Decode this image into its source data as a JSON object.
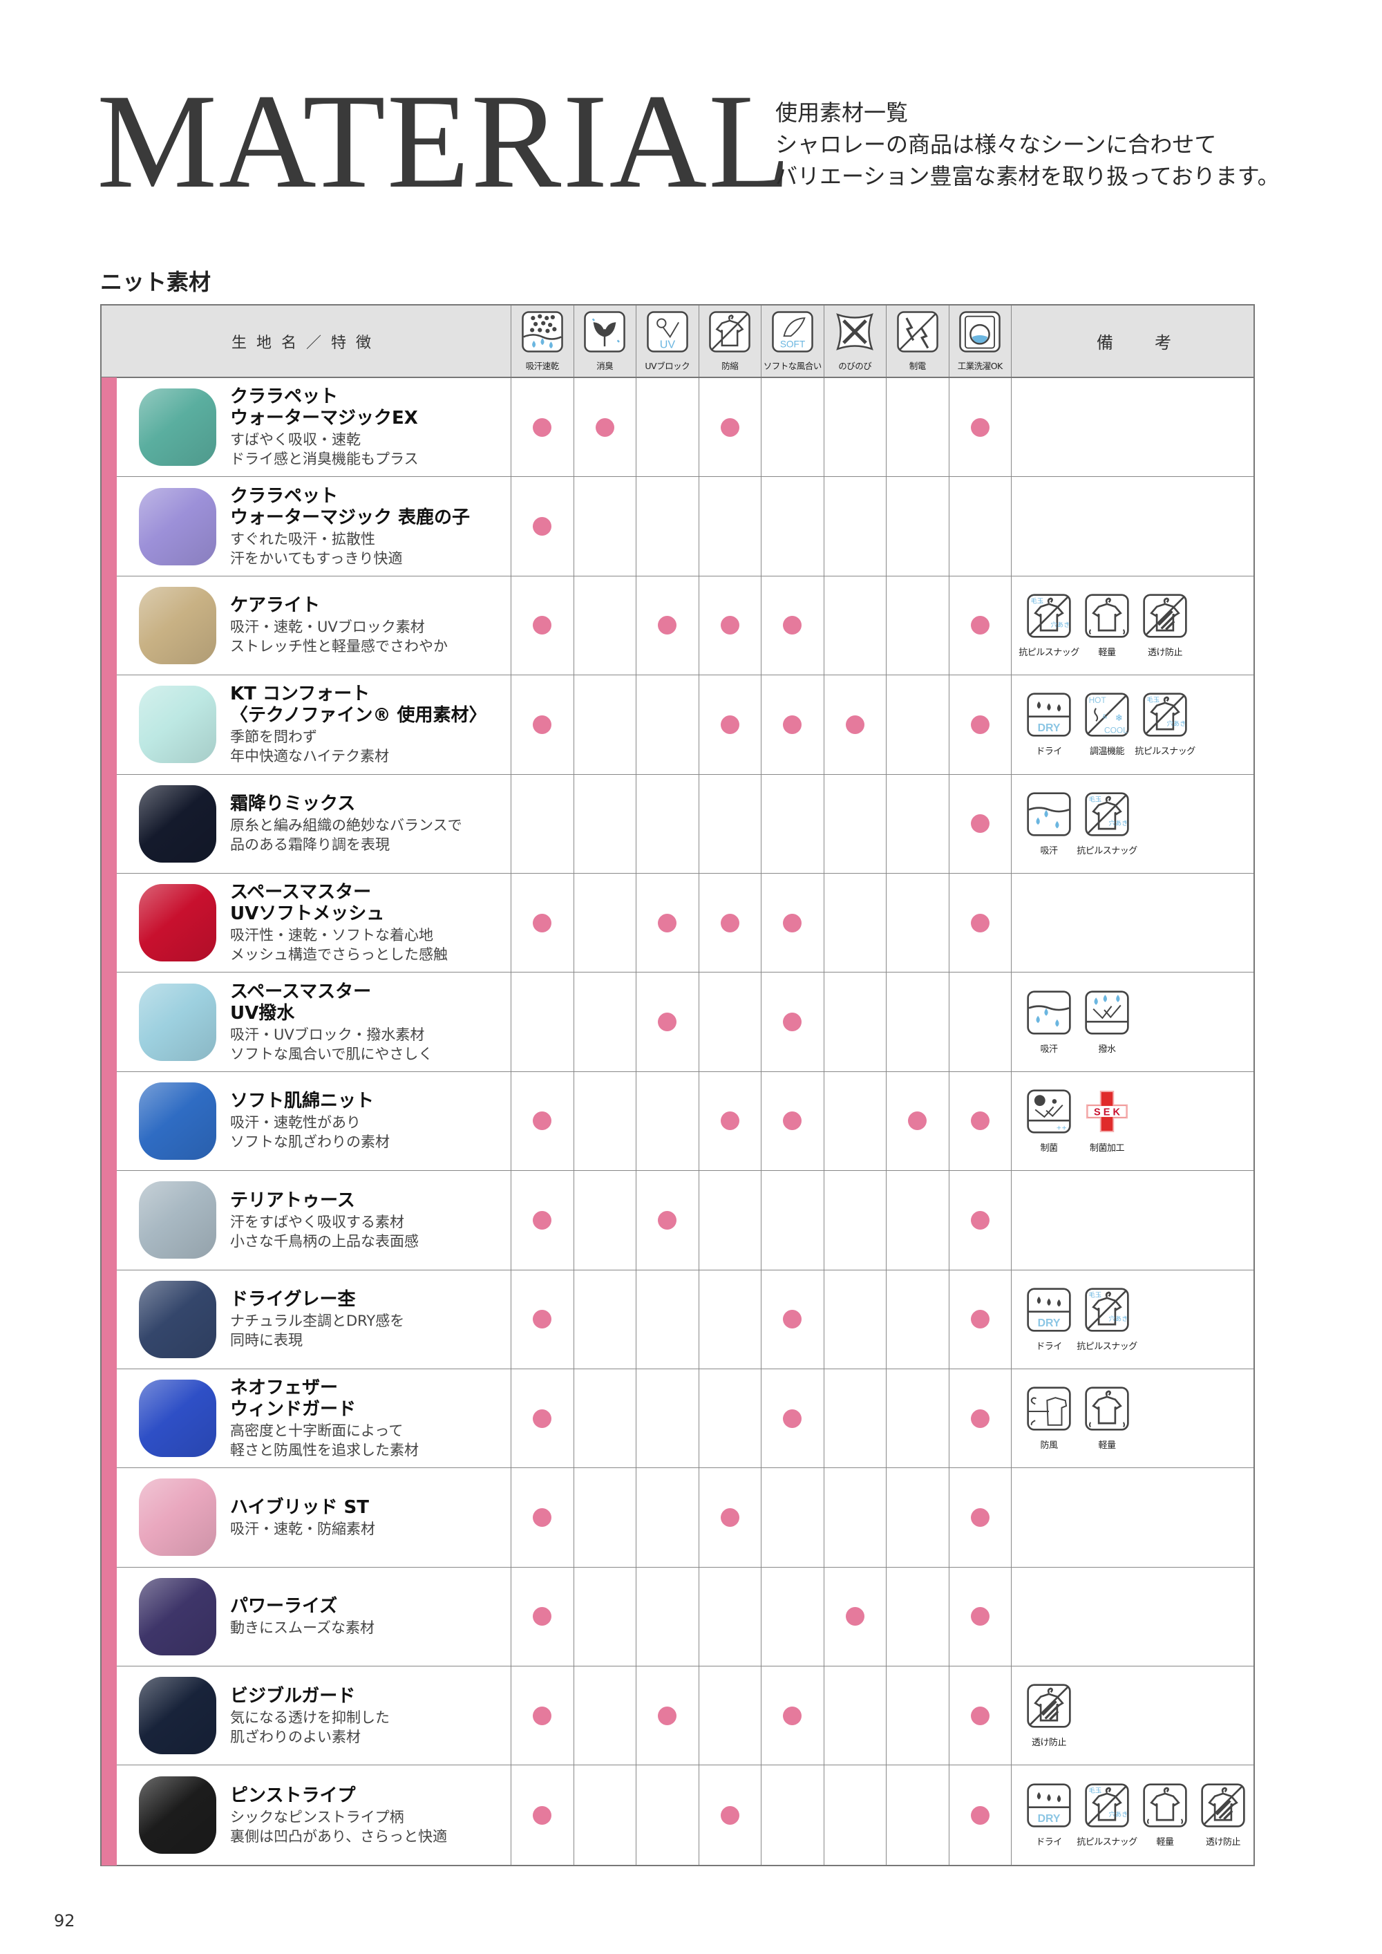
{
  "title": "MATERIAL",
  "intro": [
    "使用素材一覧",
    "シャロレーの商品は様々なシーンに合わせて",
    "バリエーション豊富な素材を取り扱っております。"
  ],
  "section_title": "ニット素材",
  "header": {
    "name": "生地名／特徴",
    "remarks": "備考",
    "features": [
      {
        "icon": "quick-dry",
        "label": "吸汗速乾"
      },
      {
        "icon": "deodorant",
        "label": "消臭"
      },
      {
        "icon": "uv-block",
        "label": "UVブロック"
      },
      {
        "icon": "shrink-proof",
        "label": "防縮"
      },
      {
        "icon": "soft",
        "label": "ソフトな風合い"
      },
      {
        "icon": "stretch",
        "label": "のびのび"
      },
      {
        "icon": "antistatic",
        "label": "制電"
      },
      {
        "icon": "industrial-wash",
        "label": "工業洗濯OK"
      }
    ]
  },
  "colors": {
    "accent": "#e57a9c",
    "border": "#777777",
    "header_bg": "#e2e2e2"
  },
  "rows": [
    {
      "name": [
        "クララペット",
        "ウォーターマジックEX"
      ],
      "desc": [
        "すばやく吸収・速乾",
        "ドライ感と消臭機能もプラス"
      ],
      "swatch": "#5aae9f",
      "features": [
        1,
        1,
        0,
        1,
        0,
        0,
        0,
        1
      ],
      "remarks": []
    },
    {
      "name": [
        "クララペット",
        "ウォーターマジック 表鹿の子"
      ],
      "desc": [
        "すぐれた吸汗・拡散性",
        "汗をかいてもすっきり快適"
      ],
      "swatch": "#9c90d8",
      "features": [
        1,
        0,
        0,
        0,
        0,
        0,
        0,
        0
      ],
      "remarks": []
    },
    {
      "name": [
        "ケアライト"
      ],
      "desc": [
        "吸汗・速乾・UVブロック素材",
        "ストレッチ性と軽量感でさわやか"
      ],
      "swatch": "#c8b184",
      "features": [
        1,
        0,
        1,
        1,
        1,
        0,
        0,
        1
      ],
      "remarks": [
        {
          "icon": "anti-pill",
          "label": "抗ピルスナッグ"
        },
        {
          "icon": "lightweight",
          "label": "軽量"
        },
        {
          "icon": "see-through-proof",
          "label": "透け防止"
        }
      ]
    },
    {
      "name": [
        "KT コンフォート",
        "〈テクノファイン® 使用素材〉"
      ],
      "desc": [
        "季節を問わず",
        "年中快適なハイテク素材"
      ],
      "swatch": "#bde8e3",
      "features": [
        1,
        0,
        0,
        1,
        1,
        1,
        0,
        1
      ],
      "remarks": [
        {
          "icon": "dry",
          "label": "ドライ"
        },
        {
          "icon": "hot-cool",
          "label": "調温機能"
        },
        {
          "icon": "anti-pill",
          "label": "抗ピルスナッグ"
        }
      ]
    },
    {
      "name": [
        "霜降りミックス"
      ],
      "desc": [
        "原糸と編み組織の絶妙なバランスで",
        "品のある霜降り調を表現"
      ],
      "swatch": "#141a2c",
      "features": [
        0,
        0,
        0,
        0,
        0,
        0,
        0,
        1
      ],
      "remarks": [
        {
          "icon": "absorb",
          "label": "吸汗"
        },
        {
          "icon": "anti-pill",
          "label": "抗ピルスナッグ"
        }
      ]
    },
    {
      "name": [
        "スペースマスター",
        "UVソフトメッシュ"
      ],
      "desc": [
        "吸汗性・速乾・ソフトな着心地",
        "メッシュ構造でさらっとした感触"
      ],
      "swatch": "#c8102e",
      "features": [
        1,
        0,
        1,
        1,
        1,
        0,
        0,
        1
      ],
      "remarks": []
    },
    {
      "name": [
        "スペースマスター",
        "UV撥水"
      ],
      "desc": [
        "吸汗・UVブロック・撥水素材",
        "ソフトな風合いで肌にやさしく"
      ],
      "swatch": "#9dd0df",
      "features": [
        0,
        0,
        1,
        0,
        1,
        0,
        0,
        0
      ],
      "remarks": [
        {
          "icon": "absorb",
          "label": "吸汗"
        },
        {
          "icon": "water-repellent",
          "label": "撥水"
        }
      ]
    },
    {
      "name": [
        "ソフト肌綿ニット"
      ],
      "desc": [
        "吸汗・速乾性があり",
        "ソフトな肌ざわりの素材"
      ],
      "swatch": "#2f6cc3",
      "features": [
        1,
        0,
        0,
        1,
        1,
        0,
        1,
        1
      ],
      "remarks": [
        {
          "icon": "antibacterial",
          "label": "制菌"
        },
        {
          "icon": "sek",
          "label": "制菌加工"
        }
      ]
    },
    {
      "name": [
        "テリアトゥース"
      ],
      "desc": [
        "汗をすばやく吸収する素材",
        "小さな千鳥柄の上品な表面感"
      ],
      "swatch": "#a8b8c2",
      "features": [
        1,
        0,
        1,
        0,
        0,
        0,
        0,
        1
      ],
      "remarks": []
    },
    {
      "name": [
        "ドライグレー杢"
      ],
      "desc": [
        "ナチュラル杢調とDRY感を",
        "同時に表現"
      ],
      "swatch": "#34466b",
      "features": [
        1,
        0,
        0,
        0,
        1,
        0,
        0,
        1
      ],
      "remarks": [
        {
          "icon": "dry",
          "label": "ドライ"
        },
        {
          "icon": "anti-pill",
          "label": "抗ピルスナッグ"
        }
      ]
    },
    {
      "name": [
        "ネオフェザー",
        "ウィンドガード"
      ],
      "desc": [
        "高密度と十字断面によって",
        "軽さと防風性を追求した素材"
      ],
      "swatch": "#2e4fc6",
      "features": [
        1,
        0,
        0,
        0,
        1,
        0,
        0,
        1
      ],
      "remarks": [
        {
          "icon": "windproof",
          "label": "防風"
        },
        {
          "icon": "lightweight",
          "label": "軽量"
        }
      ]
    },
    {
      "name": [
        "ハイブリッド ST"
      ],
      "desc": [
        "吸汗・速乾・防縮素材"
      ],
      "swatch": "#e9a7be",
      "features": [
        1,
        0,
        0,
        1,
        0,
        0,
        0,
        1
      ],
      "remarks": []
    },
    {
      "name": [
        "パワーライズ"
      ],
      "desc": [
        "動きにスムーズな素材"
      ],
      "swatch": "#3e3569",
      "features": [
        1,
        0,
        0,
        0,
        0,
        1,
        0,
        1
      ],
      "remarks": []
    },
    {
      "name": [
        "ビジブルガード"
      ],
      "desc": [
        "気になる透けを抑制した",
        "肌ざわりのよい素材"
      ],
      "swatch": "#18233a",
      "features": [
        1,
        0,
        1,
        0,
        1,
        0,
        0,
        1
      ],
      "remarks": [
        {
          "icon": "see-through-proof",
          "label": "透け防止"
        }
      ]
    },
    {
      "name": [
        "ピンストライプ"
      ],
      "desc": [
        "シックなピンストライプ柄",
        "裏側は凹凸があり、さらっと快適"
      ],
      "swatch": "#1c1c1c",
      "features": [
        1,
        0,
        0,
        1,
        0,
        0,
        0,
        1
      ],
      "remarks": [
        {
          "icon": "dry",
          "label": "ドライ"
        },
        {
          "icon": "anti-pill",
          "label": "抗ピルスナッグ"
        },
        {
          "icon": "lightweight",
          "label": "軽量"
        },
        {
          "icon": "see-through-proof",
          "label": "透け防止"
        }
      ]
    }
  ],
  "page_number": "92"
}
